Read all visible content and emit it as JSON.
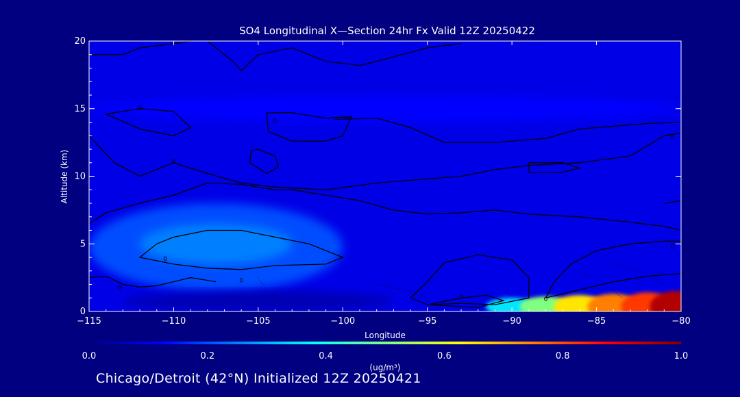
{
  "chart_data": {
    "type": "heatmap",
    "title": "SO4 Longitudinal X—Section 24hr  Fx Valid 12Z 20250422",
    "xlabel": "Longitude",
    "ylabel": "Altitude (km)",
    "xlim": [
      -115,
      -80
    ],
    "ylim": [
      0,
      20
    ],
    "x_ticks": [
      -115,
      -110,
      -105,
      -100,
      -95,
      -90,
      -85,
      -80
    ],
    "x_tick_labels": [
      "−115",
      "−110",
      "−105",
      "−100",
      "−95",
      "−90",
      "−85",
      "−80"
    ],
    "y_ticks": [
      0,
      5,
      10,
      15,
      20
    ],
    "y_tick_labels": [
      "0",
      "5",
      "10",
      "15",
      "20"
    ],
    "colorbar": {
      "min": 0.0,
      "max": 1.0,
      "ticks": [
        0.0,
        0.2,
        0.4,
        0.6,
        0.8,
        1.0
      ],
      "tick_labels": [
        "0.0",
        "0.2",
        "0.4",
        "0.6",
        "0.8",
        "1.0"
      ],
      "unit_label": "(ug/m³)",
      "colors": [
        "#000080",
        "#0000ff",
        "#0080ff",
        "#00ffff",
        "#80ff80",
        "#ffff00",
        "#ff8000",
        "#ff0000",
        "#800000"
      ]
    },
    "features": [
      {
        "name": "background",
        "lon_range": [
          -115,
          -80
        ],
        "alt_range": [
          0,
          20
        ],
        "value": 0.1
      },
      {
        "name": "upper-band",
        "lon_range": [
          -115,
          -80
        ],
        "alt_range": [
          14,
          16
        ],
        "value": 0.13
      },
      {
        "name": "western-low-plume",
        "lon_range": [
          -115,
          -100
        ],
        "alt_range": [
          1.5,
          8
        ],
        "value": 0.2
      },
      {
        "name": "western-core",
        "lon_range": [
          -112,
          -103
        ],
        "alt_range": [
          3.5,
          6.5
        ],
        "value": 0.25
      },
      {
        "name": "clean-low-layer",
        "lon_range": [
          -113,
          -97
        ],
        "alt_range": [
          0,
          1.5
        ],
        "value": 0.05
      },
      {
        "name": "surface-max-east",
        "lon_range": [
          -90,
          -80
        ],
        "alt_range": [
          0,
          1
        ],
        "value": 0.9
      }
    ],
    "contour_labels": [
      "0",
      "0",
      "0",
      "0",
      "0",
      "0",
      "0",
      "0",
      "0",
      "0"
    ]
  },
  "footer": "Chicago/Detroit (42°N) Initialized 12Z 20250421"
}
